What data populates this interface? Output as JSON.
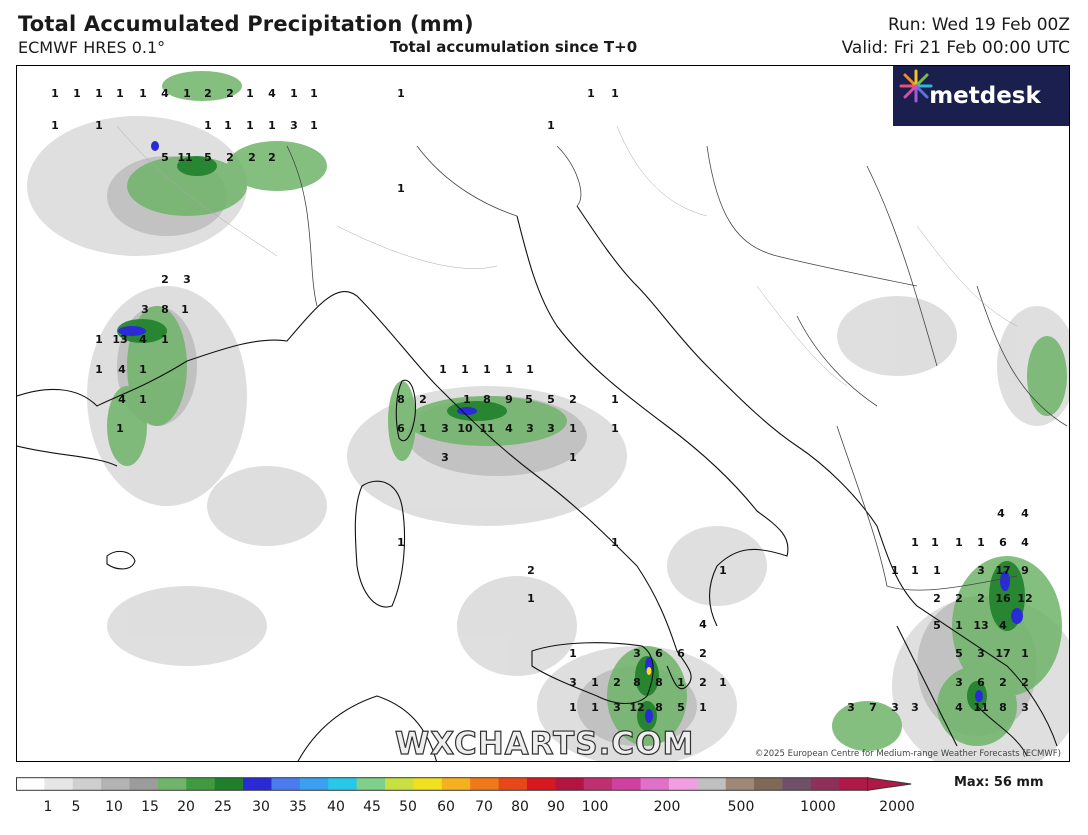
{
  "header": {
    "title": "Total Accumulated Precipitation (mm)",
    "model": "ECMWF HRES 0.1°",
    "center_title": "Total accumulation since T+0",
    "run": "Run: Wed 19 Feb 00Z",
    "valid": "Valid: Fri 21 Feb 00:00 UTC"
  },
  "logo": {
    "text": "metdesk"
  },
  "watermark": "WXCHARTS.COM",
  "copyright": "©2025 European Centre for Medium-range Weather Forecasts (ECMWF)",
  "colorbar": {
    "tick_labels": [
      "1",
      "5",
      "10",
      "15",
      "20",
      "25",
      "30",
      "35",
      "40",
      "45",
      "50",
      "60",
      "70",
      "80",
      "90",
      "100",
      "200",
      "500",
      "1000",
      "2000"
    ],
    "max_label": "Max: 56 mm",
    "colors": [
      "#ffffff",
      "#e6e6e6",
      "#cfcfcf",
      "#b3b3b3",
      "#9c9c9c",
      "#6fb46a",
      "#3f9a40",
      "#1f7f2a",
      "#2a2ad6",
      "#4a7cf0",
      "#3aa0f0",
      "#27c8e8",
      "#7fd08a",
      "#c8e040",
      "#f0e020",
      "#f5b020",
      "#f07818",
      "#e84818",
      "#d81820",
      "#b41440",
      "#c03070",
      "#d040a0",
      "#e070c8",
      "#f0a0e0",
      "#c0c0c0",
      "#a08878",
      "#806858",
      "#705068",
      "#903058",
      "#b01848"
    ]
  },
  "map": {
    "values": [
      {
        "v": "1"
      },
      {
        "v": "1"
      },
      {
        "v": "1"
      },
      {
        "v": "1"
      },
      {
        "v": "1"
      },
      {
        "v": "4"
      },
      {
        "v": "1"
      },
      {
        "v": "2"
      },
      {
        "v": "2"
      },
      {
        "v": "1"
      },
      {
        "v": "4"
      },
      {
        "v": "1"
      },
      {
        "v": "1"
      },
      {
        "v": "1"
      },
      {
        "v": "1"
      },
      {
        "v": "1"
      },
      {
        "v": "1"
      },
      {
        "v": "1"
      },
      {
        "v": "1"
      },
      {
        "v": "3"
      },
      {
        "v": "1"
      },
      {
        "v": "5"
      },
      {
        "v": "11"
      },
      {
        "v": "5"
      },
      {
        "v": "2"
      },
      {
        "v": "2"
      },
      {
        "v": "2"
      },
      {
        "v": "1"
      },
      {
        "v": "1"
      },
      {
        "v": "1"
      },
      {
        "v": "1"
      },
      {
        "v": "1"
      },
      {
        "v": "2"
      },
      {
        "v": "3"
      },
      {
        "v": "3"
      },
      {
        "v": "8"
      },
      {
        "v": "1"
      },
      {
        "v": "1"
      },
      {
        "v": "13"
      },
      {
        "v": "4"
      },
      {
        "v": "1"
      },
      {
        "v": "1"
      },
      {
        "v": "4"
      },
      {
        "v": "1"
      },
      {
        "v": "4"
      },
      {
        "v": "1"
      },
      {
        "v": "1"
      },
      {
        "v": "1"
      },
      {
        "v": "1"
      },
      {
        "v": "1"
      },
      {
        "v": "1"
      },
      {
        "v": "1"
      },
      {
        "v": "8"
      },
      {
        "v": "2"
      },
      {
        "v": "1"
      },
      {
        "v": "8"
      },
      {
        "v": "9"
      },
      {
        "v": "5"
      },
      {
        "v": "5"
      },
      {
        "v": "2"
      },
      {
        "v": "1"
      },
      {
        "v": "6"
      },
      {
        "v": "1"
      },
      {
        "v": "3"
      },
      {
        "v": "10"
      },
      {
        "v": "11"
      },
      {
        "v": "4"
      },
      {
        "v": "3"
      },
      {
        "v": "3"
      },
      {
        "v": "1"
      },
      {
        "v": "1"
      },
      {
        "v": "3"
      },
      {
        "v": "1"
      },
      {
        "v": "1"
      },
      {
        "v": "1"
      },
      {
        "v": "2"
      },
      {
        "v": "1"
      },
      {
        "v": "1"
      },
      {
        "v": "4"
      },
      {
        "v": "1"
      },
      {
        "v": "3"
      },
      {
        "v": "6"
      },
      {
        "v": "6"
      },
      {
        "v": "2"
      },
      {
        "v": "3"
      },
      {
        "v": "1"
      },
      {
        "v": "2"
      },
      {
        "v": "8"
      },
      {
        "v": "8"
      },
      {
        "v": "1"
      },
      {
        "v": "2"
      },
      {
        "v": "1"
      },
      {
        "v": "1"
      },
      {
        "v": "1"
      },
      {
        "v": "3"
      },
      {
        "v": "12"
      },
      {
        "v": "8"
      },
      {
        "v": "5"
      },
      {
        "v": "1"
      },
      {
        "v": "1"
      },
      {
        "v": "1"
      },
      {
        "v": "1"
      },
      {
        "v": "1"
      },
      {
        "v": "6"
      },
      {
        "v": "4"
      },
      {
        "v": "4"
      },
      {
        "v": "4"
      },
      {
        "v": "1"
      },
      {
        "v": "1"
      },
      {
        "v": "1"
      },
      {
        "v": "3"
      },
      {
        "v": "17"
      },
      {
        "v": "9"
      },
      {
        "v": "2"
      },
      {
        "v": "2"
      },
      {
        "v": "2"
      },
      {
        "v": "16"
      },
      {
        "v": "12"
      },
      {
        "v": "5"
      },
      {
        "v": "1"
      },
      {
        "v": "13"
      },
      {
        "v": "4"
      },
      {
        "v": "5"
      },
      {
        "v": "3"
      },
      {
        "v": "17"
      },
      {
        "v": "1"
      },
      {
        "v": "3"
      },
      {
        "v": "6"
      },
      {
        "v": "2"
      },
      {
        "v": "2"
      },
      {
        "v": "3"
      },
      {
        "v": "7"
      },
      {
        "v": "3"
      },
      {
        "v": "3"
      },
      {
        "v": "4"
      },
      {
        "v": "11"
      },
      {
        "v": "8"
      },
      {
        "v": "3"
      }
    ]
  }
}
